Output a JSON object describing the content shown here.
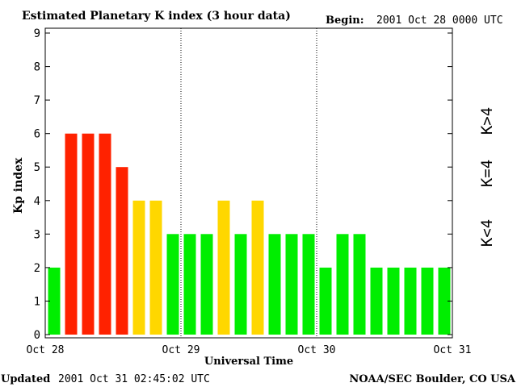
{
  "header": {
    "title": "Estimated Planetary K index (3 hour data)",
    "begin_label": "Begin:",
    "begin_value": "2001 Oct 28 0000 UTC"
  },
  "footer": {
    "updated_label": "Updated",
    "updated_value": "2001 Oct 31 02:45:02 UTC",
    "credit": "NOAA/SEC Boulder, CO USA"
  },
  "legend": {
    "high": "K>4",
    "mid": "K=4",
    "low": "K<4"
  },
  "colors": {
    "high": "#ff2200",
    "mid": "#ffd700",
    "low": "#00ee00"
  },
  "chart_data": {
    "type": "bar",
    "title": "Estimated Planetary K index (3 hour data)",
    "xlabel": "Universal Time",
    "ylabel": "Kp index",
    "ylim": [
      0,
      9
    ],
    "yticks": [
      "0",
      "1",
      "2",
      "3",
      "4",
      "5",
      "6",
      "7",
      "8",
      "9"
    ],
    "xticks": [
      "Oct 28",
      "Oct 29",
      "Oct 30",
      "Oct 31"
    ],
    "interval_hours": 3,
    "values": [
      2,
      6,
      6,
      6,
      5,
      4,
      4,
      3,
      3,
      3,
      4,
      3,
      4,
      3,
      3,
      3,
      2,
      3,
      3,
      2,
      2,
      2,
      2,
      2
    ],
    "day_separators": "dotted"
  }
}
